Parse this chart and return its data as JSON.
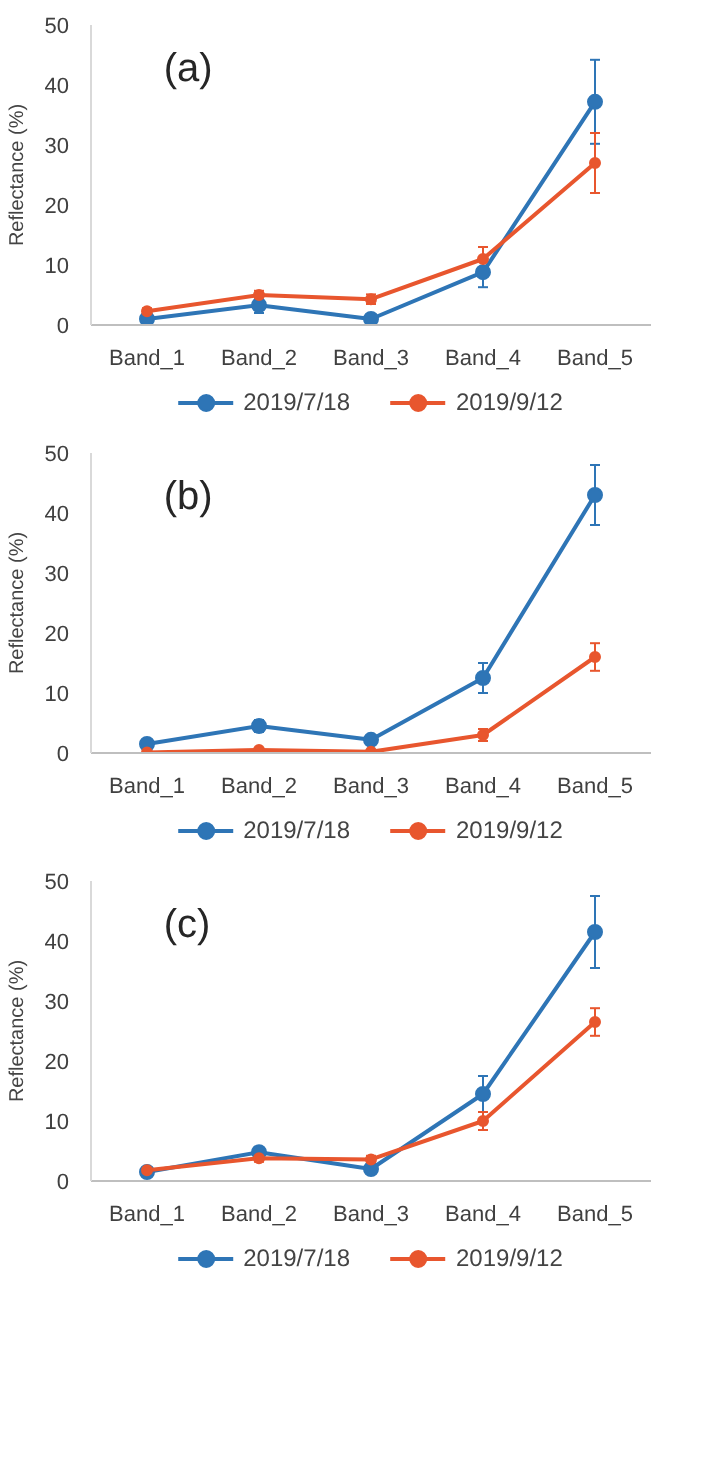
{
  "chart_data": [
    {
      "type": "line",
      "annotations": [
        "(a)"
      ],
      "ylabel": "Reflectance (%)",
      "categories": [
        "Band_1",
        "Band_2",
        "Band_3",
        "Band_4",
        "Band_5"
      ],
      "ylim": [
        0,
        50
      ],
      "yticks": [
        0,
        10,
        20,
        30,
        40,
        50
      ],
      "grid": false,
      "legend": "bottom",
      "marker": "circle",
      "line_style": "solid",
      "series": [
        {
          "name": "2019/7/18",
          "color": "#2e75b6",
          "values": [
            1,
            3.3,
            1,
            8.8,
            37.2
          ],
          "errors": [
            0.5,
            1.3,
            0.3,
            2.5,
            7
          ]
        },
        {
          "name": "2019/9/12",
          "color": "#e8562e",
          "values": [
            2.3,
            5,
            4.3,
            11,
            27
          ],
          "errors": [
            0.5,
            0.7,
            0.8,
            2,
            5
          ]
        }
      ]
    },
    {
      "type": "line",
      "annotations": [
        "(b)"
      ],
      "ylabel": "Reflectance (%)",
      "categories": [
        "Band_1",
        "Band_2",
        "Band_3",
        "Band_4",
        "Band_5"
      ],
      "ylim": [
        0,
        50
      ],
      "yticks": [
        0,
        10,
        20,
        30,
        40,
        50
      ],
      "grid": false,
      "legend": "bottom",
      "marker": "circle",
      "line_style": "solid",
      "series": [
        {
          "name": "2019/7/18",
          "color": "#2e75b6",
          "values": [
            1.5,
            4.5,
            2.2,
            12.5,
            43
          ],
          "errors": [
            0.5,
            1,
            0.7,
            2.5,
            5
          ]
        },
        {
          "name": "2019/9/12",
          "color": "#e8562e",
          "values": [
            0.1,
            0.5,
            0.2,
            3,
            16
          ],
          "errors": [
            0.2,
            0.3,
            0.2,
            1,
            2.3
          ]
        }
      ]
    },
    {
      "type": "line",
      "annotations": [
        "(c)"
      ],
      "ylabel": "Reflectance (%)",
      "categories": [
        "Band_1",
        "Band_2",
        "Band_3",
        "Band_4",
        "Band_5"
      ],
      "ylim": [
        0,
        50
      ],
      "yticks": [
        0,
        10,
        20,
        30,
        40,
        50
      ],
      "grid": false,
      "legend": "bottom",
      "marker": "circle",
      "line_style": "solid",
      "series": [
        {
          "name": "2019/7/18",
          "color": "#2e75b6",
          "values": [
            1.5,
            4.8,
            2,
            14.5,
            41.5
          ],
          "errors": [
            0.3,
            0.6,
            0.4,
            3,
            6
          ]
        },
        {
          "name": "2019/9/12",
          "color": "#e8562e",
          "values": [
            1.8,
            3.8,
            3.6,
            10,
            26.5
          ],
          "errors": [
            0.3,
            0.6,
            0.6,
            1.5,
            2.3
          ]
        }
      ]
    }
  ]
}
